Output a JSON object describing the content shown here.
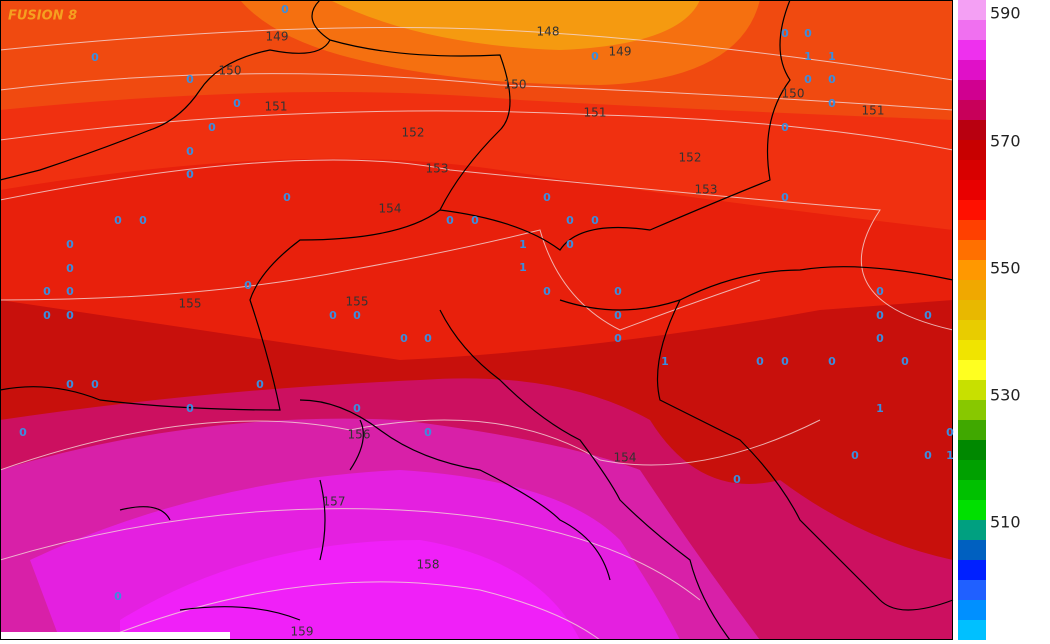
{
  "title": "FUSION 8",
  "contour_labels": [
    "148",
    "149",
    "149",
    "150",
    "150",
    "150",
    "151",
    "151",
    "151",
    "152",
    "152",
    "153",
    "153",
    "154",
    "155",
    "155",
    "156",
    "154",
    "157",
    "158",
    "159"
  ],
  "station_marks": [
    0,
    0,
    0,
    0,
    0,
    0,
    0,
    0,
    0,
    0,
    0,
    0,
    0,
    0,
    0,
    0,
    0,
    0,
    0,
    0,
    0,
    0,
    0,
    0,
    0,
    0,
    0,
    0,
    0,
    0,
    0,
    0,
    0,
    0,
    0,
    0,
    0,
    0,
    0,
    0,
    0,
    0,
    0,
    0,
    0,
    0,
    0,
    0,
    0,
    0,
    0,
    0,
    0,
    0,
    0,
    0,
    0,
    0,
    0,
    1,
    1,
    1,
    1,
    1,
    1,
    1
  ],
  "legend": {
    "labels": [
      590,
      570,
      550,
      530,
      510
    ]
  }
}
